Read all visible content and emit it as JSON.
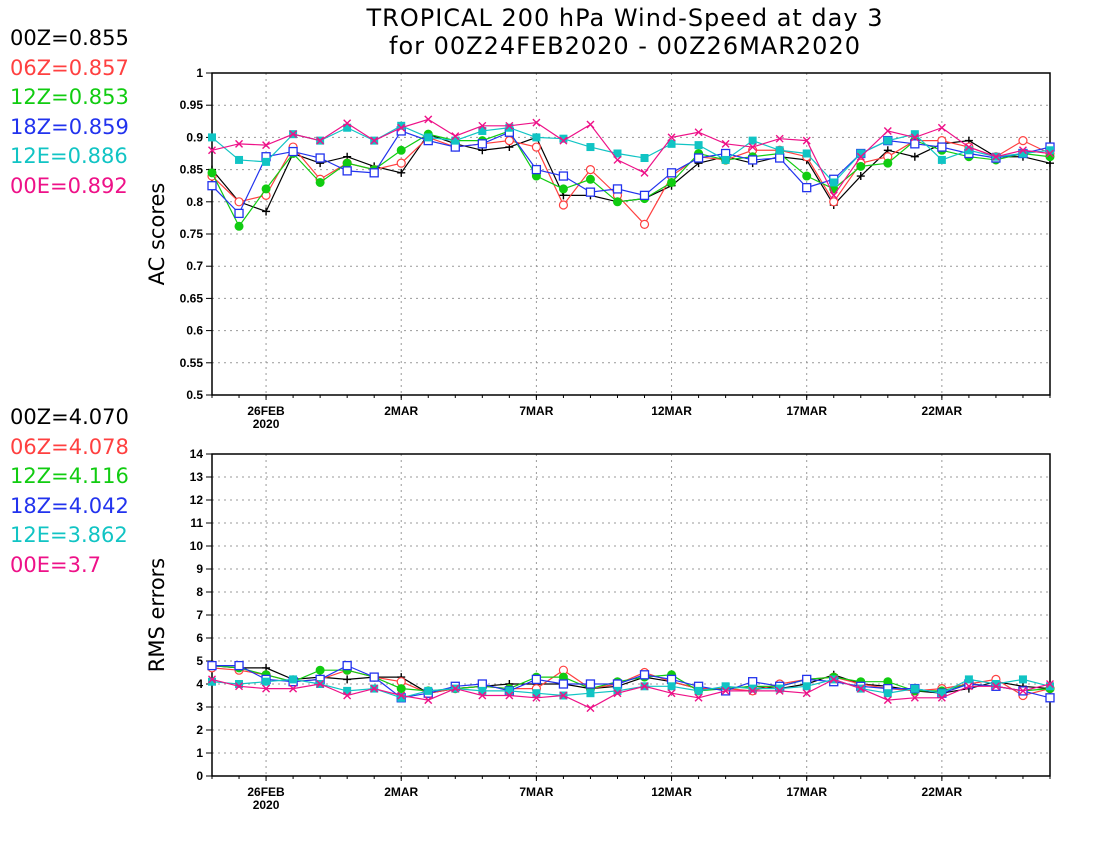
{
  "title_line1": "TROPICAL 200 hPa Wind-Speed at day 3",
  "title_line2": "for 00Z24FEB2020 - 00Z26MAR2020",
  "legend_ac": [
    {
      "text": "00Z=0.855",
      "color": "#000000"
    },
    {
      "text": "06Z=0.857",
      "color": "#ff4040"
    },
    {
      "text": "12Z=0.853",
      "color": "#11cc11"
    },
    {
      "text": "18Z=0.859",
      "color": "#2233ee"
    },
    {
      "text": "12E=0.886",
      "color": "#11c4c4"
    },
    {
      "text": "00E=0.892",
      "color": "#ee1188"
    }
  ],
  "legend_rms": [
    {
      "text": "00Z=4.070",
      "color": "#000000"
    },
    {
      "text": "06Z=4.078",
      "color": "#ff4040"
    },
    {
      "text": "12Z=4.116",
      "color": "#11cc11"
    },
    {
      "text": "18Z=4.042",
      "color": "#2233ee"
    },
    {
      "text": "12E=3.862",
      "color": "#11c4c4"
    },
    {
      "text": "00E=3.7",
      "color": "#ee1188"
    }
  ],
  "chart_data": [
    {
      "type": "line",
      "ylabel": "AC scores",
      "ylim": [
        0.5,
        1
      ],
      "yticks": [
        "0.5",
        "0.55",
        "0.6",
        "0.65",
        "0.7",
        "0.75",
        "0.8",
        "0.85",
        "0.9",
        "0.95",
        "1"
      ],
      "xticks": [
        {
          "day": 2,
          "label": "26FEB",
          "sub": "2020"
        },
        {
          "day": 7,
          "label": "2MAR",
          "sub": ""
        },
        {
          "day": 12,
          "label": "7MAR",
          "sub": ""
        },
        {
          "day": 17,
          "label": "12MAR",
          "sub": ""
        },
        {
          "day": 22,
          "label": "17MAR",
          "sub": ""
        },
        {
          "day": 27,
          "label": "22MAR",
          "sub": ""
        }
      ],
      "x_start": "24FEB2020",
      "xlim": [
        0,
        31
      ],
      "grid": true,
      "series": [
        {
          "name": "00Z",
          "color": "#000000",
          "marker": "plus",
          "values": [
            0.85,
            0.8,
            0.785,
            0.875,
            0.86,
            0.87,
            0.855,
            0.845,
            0.905,
            0.89,
            0.88,
            0.885,
            0.9,
            0.81,
            0.81,
            0.8,
            0.805,
            0.825,
            0.86,
            0.87,
            0.86,
            0.87,
            0.865,
            0.795,
            0.84,
            0.88,
            0.87,
            0.89,
            0.895,
            0.87,
            0.87,
            0.86
          ]
        },
        {
          "name": "06Z",
          "color": "#ff4040",
          "marker": "circle",
          "values": [
            0.84,
            0.8,
            0.81,
            0.885,
            0.835,
            0.86,
            0.85,
            0.86,
            0.9,
            0.885,
            0.89,
            0.895,
            0.885,
            0.795,
            0.85,
            0.81,
            0.765,
            0.84,
            0.87,
            0.865,
            0.88,
            0.88,
            0.87,
            0.8,
            0.86,
            0.87,
            0.895,
            0.895,
            0.885,
            0.87,
            0.895,
            0.875
          ]
        },
        {
          "name": "12Z",
          "color": "#11cc11",
          "marker": "dot",
          "values": [
            0.845,
            0.762,
            0.82,
            0.875,
            0.83,
            0.86,
            0.85,
            0.88,
            0.905,
            0.895,
            0.895,
            0.91,
            0.84,
            0.82,
            0.835,
            0.8,
            0.805,
            0.83,
            0.875,
            0.865,
            0.87,
            0.875,
            0.84,
            0.82,
            0.855,
            0.86,
            0.895,
            0.88,
            0.87,
            0.865,
            0.875,
            0.87
          ]
        },
        {
          "name": "18Z",
          "color": "#2233ee",
          "marker": "square",
          "values": [
            0.825,
            0.782,
            0.87,
            0.878,
            0.868,
            0.848,
            0.845,
            0.91,
            0.895,
            0.885,
            0.89,
            0.908,
            0.85,
            0.84,
            0.815,
            0.82,
            0.81,
            0.845,
            0.868,
            0.875,
            0.865,
            0.868,
            0.822,
            0.835,
            0.875,
            0.895,
            0.89,
            0.885,
            0.875,
            0.868,
            0.875,
            0.885
          ]
        },
        {
          "name": "12E",
          "color": "#11c4c4",
          "marker": "fsquare",
          "values": [
            0.9,
            0.865,
            0.862,
            0.905,
            0.895,
            0.915,
            0.895,
            0.918,
            0.9,
            0.895,
            0.91,
            0.915,
            0.9,
            0.898,
            0.885,
            0.875,
            0.868,
            0.89,
            0.888,
            0.865,
            0.895,
            0.88,
            0.875,
            0.83,
            0.875,
            0.895,
            0.905,
            0.865,
            0.88,
            0.87,
            0.875,
            0.88
          ]
        },
        {
          "name": "00E",
          "color": "#ee1188",
          "marker": "x",
          "values": [
            0.88,
            0.89,
            0.888,
            0.905,
            0.895,
            0.922,
            0.895,
            0.915,
            0.928,
            0.902,
            0.918,
            0.918,
            0.923,
            0.895,
            0.92,
            0.865,
            0.845,
            0.9,
            0.908,
            0.89,
            0.885,
            0.898,
            0.895,
            0.81,
            0.87,
            0.91,
            0.9,
            0.915,
            0.885,
            0.87,
            0.88,
            0.875
          ]
        }
      ]
    },
    {
      "type": "line",
      "ylabel": "RMS errors",
      "ylim": [
        0,
        14
      ],
      "yticks": [
        "0",
        "1",
        "2",
        "3",
        "4",
        "5",
        "6",
        "7",
        "8",
        "9",
        "10",
        "11",
        "12",
        "13",
        "14"
      ],
      "xticks": [
        {
          "day": 2,
          "label": "26FEB",
          "sub": "2020"
        },
        {
          "day": 7,
          "label": "2MAR",
          "sub": ""
        },
        {
          "day": 12,
          "label": "7MAR",
          "sub": ""
        },
        {
          "day": 17,
          "label": "12MAR",
          "sub": ""
        },
        {
          "day": 22,
          "label": "17MAR",
          "sub": ""
        },
        {
          "day": 27,
          "label": "22MAR",
          "sub": ""
        }
      ],
      "x_start": "24FEB2020",
      "xlim": [
        0,
        31
      ],
      "grid": true,
      "series": [
        {
          "name": "00Z",
          "color": "#000000",
          "marker": "plus",
          "values": [
            4.8,
            4.7,
            4.7,
            4.2,
            4.3,
            4.2,
            4.3,
            4.3,
            3.6,
            3.8,
            3.9,
            4.0,
            4.0,
            4.0,
            3.8,
            3.9,
            4.3,
            4.1,
            3.8,
            3.8,
            3.9,
            3.8,
            4.0,
            4.4,
            4.0,
            3.9,
            3.7,
            3.6,
            3.8,
            4.1,
            3.9,
            3.8
          ]
        },
        {
          "name": "06Z",
          "color": "#ff4040",
          "marker": "circle",
          "values": [
            4.7,
            4.6,
            4.4,
            4.1,
            4.2,
            4.6,
            4.3,
            4.1,
            3.6,
            3.8,
            3.9,
            3.8,
            3.8,
            4.6,
            3.8,
            4.0,
            4.5,
            4.1,
            3.8,
            3.8,
            3.7,
            4.0,
            4.2,
            4.3,
            4.0,
            3.8,
            3.7,
            3.8,
            4.0,
            4.2,
            3.5,
            3.8
          ]
        },
        {
          "name": "12Z",
          "color": "#11cc11",
          "marker": "dot",
          "values": [
            4.8,
            4.7,
            4.4,
            4.1,
            4.6,
            4.6,
            4.3,
            3.8,
            3.7,
            3.8,
            3.9,
            3.8,
            4.3,
            4.3,
            3.8,
            4.1,
            4.3,
            4.4,
            3.7,
            3.8,
            3.9,
            3.9,
            4.2,
            4.3,
            4.1,
            4.1,
            3.7,
            3.7,
            4.0,
            3.9,
            3.7,
            3.8
          ]
        },
        {
          "name": "18Z",
          "color": "#2233ee",
          "marker": "square",
          "values": [
            4.8,
            4.8,
            4.2,
            4.1,
            4.2,
            4.8,
            4.3,
            3.4,
            3.6,
            3.9,
            4.0,
            3.7,
            4.2,
            4.0,
            4.0,
            4.0,
            4.4,
            4.2,
            3.9,
            3.7,
            4.1,
            3.9,
            4.2,
            4.1,
            3.9,
            3.8,
            3.8,
            3.6,
            4.0,
            3.9,
            3.7,
            3.4
          ]
        },
        {
          "name": "12E",
          "color": "#11c4c4",
          "marker": "fsquare",
          "values": [
            4.1,
            4.0,
            4.1,
            4.2,
            4.0,
            3.7,
            3.8,
            3.4,
            3.7,
            3.8,
            3.7,
            3.7,
            3.6,
            3.5,
            3.6,
            3.7,
            3.9,
            3.9,
            3.7,
            3.9,
            3.8,
            3.8,
            3.9,
            4.2,
            3.8,
            3.6,
            3.8,
            3.6,
            4.2,
            4.0,
            4.2,
            3.9
          ]
        },
        {
          "name": "00E",
          "color": "#ee1188",
          "marker": "x",
          "values": [
            4.2,
            3.9,
            3.8,
            3.8,
            4.0,
            3.5,
            3.8,
            3.5,
            3.3,
            3.8,
            3.5,
            3.5,
            3.4,
            3.5,
            2.95,
            3.6,
            3.9,
            3.6,
            3.4,
            3.7,
            3.7,
            3.7,
            3.6,
            4.2,
            3.8,
            3.3,
            3.4,
            3.4,
            3.9,
            3.9,
            3.7,
            4.0
          ]
        }
      ]
    }
  ]
}
